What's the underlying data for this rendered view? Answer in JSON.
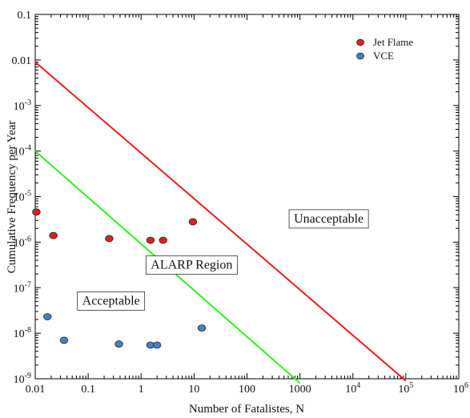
{
  "chart_data": {
    "type": "scatter",
    "xlabel": "Number of Fatalistes, N",
    "ylabel": "Cumulative Frequency per Year",
    "xscale": "log",
    "yscale": "log",
    "xlim": [
      0.01,
      1000000
    ],
    "ylim": [
      1e-09,
      0.1
    ],
    "x_ticks": [
      {
        "value": 0.01,
        "label": "0.01",
        "sup": ""
      },
      {
        "value": 0.1,
        "label": "0.1",
        "sup": ""
      },
      {
        "value": 1,
        "label": "1",
        "sup": ""
      },
      {
        "value": 10,
        "label": "10",
        "sup": ""
      },
      {
        "value": 100,
        "label": "100",
        "sup": ""
      },
      {
        "value": 1000,
        "label": "1000",
        "sup": ""
      },
      {
        "value": 10000,
        "label": "10",
        "sup": "4"
      },
      {
        "value": 100000,
        "label": "10",
        "sup": "5"
      },
      {
        "value": 1000000,
        "label": "10",
        "sup": "6"
      }
    ],
    "y_ticks": [
      {
        "value": 0.1,
        "label": "0.1",
        "sup": ""
      },
      {
        "value": 0.01,
        "label": "0.01",
        "sup": ""
      },
      {
        "value": 0.001,
        "label": "10",
        "sup": "-3"
      },
      {
        "value": 0.0001,
        "label": "10",
        "sup": "-4"
      },
      {
        "value": 1e-05,
        "label": "10",
        "sup": "-5"
      },
      {
        "value": 1e-06,
        "label": "10",
        "sup": "-6"
      },
      {
        "value": 1e-07,
        "label": "10",
        "sup": "-7"
      },
      {
        "value": 1e-08,
        "label": "10",
        "sup": "-8"
      },
      {
        "value": 1e-09,
        "label": "10",
        "sup": "-9"
      }
    ],
    "grid": false,
    "legend_position": "top-right",
    "series": [
      {
        "name": "Jet Flame",
        "color": "#e02020",
        "points": [
          {
            "x": 0.0105,
            "y": 4.6e-06
          },
          {
            "x": 0.022,
            "y": 1.4e-06
          },
          {
            "x": 0.25,
            "y": 1.2e-06
          },
          {
            "x": 1.5,
            "y": 1.1e-06
          },
          {
            "x": 2.6,
            "y": 1.1e-06
          },
          {
            "x": 9.5,
            "y": 2.8e-06
          }
        ]
      },
      {
        "name": "VCE",
        "color": "#3d85c6",
        "points": [
          {
            "x": 0.017,
            "y": 2.3e-08
          },
          {
            "x": 0.035,
            "y": 7e-09
          },
          {
            "x": 0.38,
            "y": 5.8e-09
          },
          {
            "x": 1.5,
            "y": 5.5e-09
          },
          {
            "x": 2.0,
            "y": 5.5e-09
          },
          {
            "x": 14,
            "y": 1.3e-08
          }
        ]
      }
    ],
    "lines": [
      {
        "color": "#ee1c1c",
        "from": {
          "x": 0.01,
          "y": 0.009
        },
        "to": {
          "x": 100000,
          "y": 9e-10
        }
      },
      {
        "color": "#33ee22",
        "from": {
          "x": 0.01,
          "y": 0.0001
        },
        "to": {
          "x": 1000,
          "y": 8e-10
        }
      }
    ],
    "annotations": [
      {
        "text": "Unacceptable",
        "x": 3500,
        "y": 3.3e-06
      },
      {
        "text": "ALARP Region",
        "x": 9,
        "y": 3.2e-07
      },
      {
        "text": "Acceptable",
        "x": 0.27,
        "y": 5.2e-08
      }
    ]
  }
}
